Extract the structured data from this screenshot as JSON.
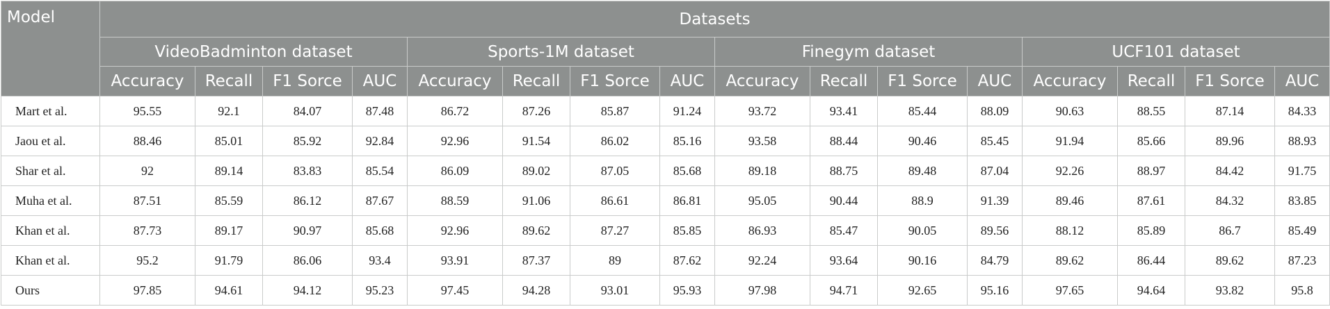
{
  "table": {
    "model_header": "Model",
    "datasets_header": "Datasets",
    "groups": [
      {
        "name": "VideoBadminton dataset",
        "metrics": [
          "Accuracy",
          "Recall",
          "F1 Sorce",
          "AUC"
        ]
      },
      {
        "name": "Sports-1M dataset",
        "metrics": [
          "Accuracy",
          "Recall",
          "F1 Sorce",
          "AUC"
        ]
      },
      {
        "name": "Finegym dataset",
        "metrics": [
          "Accuracy",
          "Recall",
          "F1 Sorce",
          "AUC"
        ]
      },
      {
        "name": "UCF101 dataset",
        "metrics": [
          "Accuracy",
          "Recall",
          "F1 Sorce",
          "AUC"
        ]
      }
    ],
    "rows": [
      {
        "model": "Mart et al.",
        "values": [
          95.55,
          92.1,
          84.07,
          87.48,
          86.72,
          87.26,
          85.87,
          91.24,
          93.72,
          93.41,
          85.44,
          88.09,
          90.63,
          88.55,
          87.14,
          84.33
        ]
      },
      {
        "model": "Jaou et al.",
        "values": [
          88.46,
          85.01,
          85.92,
          92.84,
          92.96,
          91.54,
          86.02,
          85.16,
          93.58,
          88.44,
          90.46,
          85.45,
          91.94,
          85.66,
          89.96,
          88.93
        ]
      },
      {
        "model": "Shar et al.",
        "values": [
          92,
          89.14,
          83.83,
          85.54,
          86.09,
          89.02,
          87.05,
          85.68,
          89.18,
          88.75,
          89.48,
          87.04,
          92.26,
          88.97,
          84.42,
          91.75
        ]
      },
      {
        "model": "Muha et al.",
        "values": [
          87.51,
          85.59,
          86.12,
          87.67,
          88.59,
          91.06,
          86.61,
          86.81,
          95.05,
          90.44,
          88.9,
          91.39,
          89.46,
          87.61,
          84.32,
          83.85
        ]
      },
      {
        "model": "Khan et al.",
        "values": [
          87.73,
          89.17,
          90.97,
          85.68,
          92.96,
          89.62,
          87.27,
          85.85,
          86.93,
          85.47,
          90.05,
          89.56,
          88.12,
          85.89,
          86.7,
          85.49
        ]
      },
      {
        "model": "Khan et al.",
        "values": [
          95.2,
          91.79,
          86.06,
          93.4,
          93.91,
          87.37,
          89,
          87.62,
          92.24,
          93.64,
          90.16,
          84.79,
          89.62,
          86.44,
          89.62,
          87.23
        ]
      },
      {
        "model": "Ours",
        "values": [
          97.85,
          94.61,
          94.12,
          95.23,
          97.45,
          94.28,
          93.01,
          95.93,
          97.98,
          94.71,
          92.65,
          95.16,
          97.65,
          94.64,
          93.82,
          95.8
        ]
      }
    ]
  }
}
